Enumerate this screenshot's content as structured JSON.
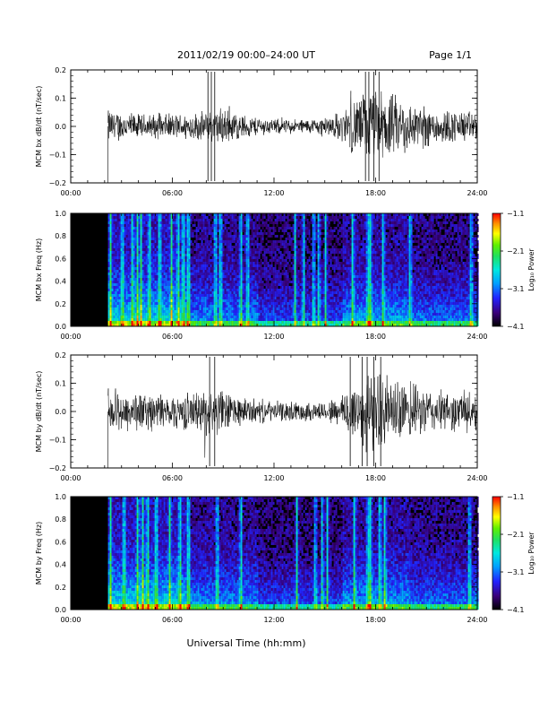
{
  "header": {
    "title": "2011/02/19  00:00–24:00 UT",
    "page": "Page 1/1"
  },
  "footer": {
    "xlabel": "Universal Time (hh:mm)"
  },
  "chart_data": [
    {
      "type": "line",
      "panel": "bx-waveform",
      "title": "",
      "xlabel": "",
      "ylabel": "MCM bx dB/dt (nT/sec)",
      "x_ticks": [
        "00:00",
        "06:00",
        "12:00",
        "18:00",
        "24:00"
      ],
      "y_ticks": [
        "−0.2",
        "−0.1",
        "0.0",
        "0.1",
        "0.2"
      ],
      "xlim_hours": [
        0,
        24
      ],
      "ylim": [
        -0.2,
        0.2
      ],
      "data_start_hour": 2.2,
      "series": [
        {
          "envelope_hours": [
            0,
            2.2,
            2.2,
            4,
            6,
            8,
            9,
            10,
            12,
            14,
            15,
            16,
            16.5,
            17,
            18,
            19,
            20,
            22,
            24
          ],
          "envelope_amplitude": [
            0,
            0,
            0.07,
            0.05,
            0.05,
            0.06,
            0.08,
            0.05,
            0.03,
            0.03,
            0.04,
            0.06,
            0.1,
            0.13,
            0.15,
            0.13,
            0.1,
            0.07,
            0.06
          ]
        }
      ]
    },
    {
      "type": "heatmap",
      "panel": "bx-spectrogram",
      "title": "",
      "xlabel": "",
      "ylabel": "MCM bx Freq (Hz)",
      "x_ticks": [
        "00:00",
        "06:00",
        "12:00",
        "18:00",
        "24:00"
      ],
      "y_ticks": [
        "0.0",
        "0.2",
        "0.4",
        "0.6",
        "0.8",
        "1.0"
      ],
      "xlim_hours": [
        0,
        24
      ],
      "ylim": [
        0,
        1.0
      ],
      "colorbar": {
        "label": "Log₁₀ Power",
        "range": [
          -4.1,
          -1.1
        ],
        "ticks": [
          "−1.1",
          "−2.1",
          "−3.1",
          "−4.1"
        ]
      },
      "data_start_hour": 2.2,
      "bright_bands_hours": [
        2.3,
        3.0,
        3.6,
        3.9,
        4.1,
        4.6,
        5.2,
        5.9,
        6.3,
        6.6,
        6.9,
        8.5,
        8.8,
        10.0,
        10.4,
        13.2,
        13.7,
        14.3,
        14.6,
        15.0,
        16.6,
        17.5,
        17.65,
        18.4,
        20.0,
        23.6
      ]
    },
    {
      "type": "line",
      "panel": "by-waveform",
      "title": "",
      "xlabel": "",
      "ylabel": "MCM by dB/dt (nT/sec)",
      "x_ticks": [
        "00:00",
        "06:00",
        "12:00",
        "18:00",
        "24:00"
      ],
      "y_ticks": [
        "−0.2",
        "−0.1",
        "0.0",
        "0.1",
        "0.2"
      ],
      "xlim_hours": [
        0,
        24
      ],
      "ylim": [
        -0.2,
        0.2
      ],
      "data_start_hour": 2.2,
      "series": [
        {
          "envelope_hours": [
            0,
            2.2,
            2.2,
            4,
            6,
            7.5,
            8.5,
            10,
            12,
            14,
            15,
            16,
            16.5,
            17,
            18,
            19,
            20,
            22,
            24
          ],
          "envelope_amplitude": [
            0,
            0,
            0.09,
            0.08,
            0.07,
            0.08,
            0.1,
            0.06,
            0.04,
            0.04,
            0.04,
            0.07,
            0.12,
            0.15,
            0.16,
            0.14,
            0.11,
            0.08,
            0.08
          ]
        }
      ]
    },
    {
      "type": "heatmap",
      "panel": "by-spectrogram",
      "title": "",
      "xlabel": "",
      "ylabel": "MCM by Freq (Hz)",
      "x_ticks": [
        "00:00",
        "06:00",
        "12:00",
        "18:00",
        "24:00"
      ],
      "y_ticks": [
        "0.0",
        "0.2",
        "0.4",
        "0.6",
        "0.8",
        "1.0"
      ],
      "xlim_hours": [
        0,
        24
      ],
      "ylim": [
        0,
        1.0
      ],
      "colorbar": {
        "label": "Log₁₀ Power",
        "range": [
          -4.1,
          -1.1
        ],
        "ticks": [
          "−1.1",
          "−2.1",
          "−3.1",
          "−4.1"
        ]
      },
      "data_start_hour": 2.2,
      "bright_bands_hours": [
        2.3,
        3.1,
        3.9,
        4.2,
        4.5,
        5.0,
        5.8,
        6.4,
        6.9,
        8.6,
        10.0,
        13.3,
        14.4,
        14.8,
        15.1,
        16.7,
        17.5,
        17.65,
        18.2,
        18.5,
        23.5
      ]
    }
  ]
}
